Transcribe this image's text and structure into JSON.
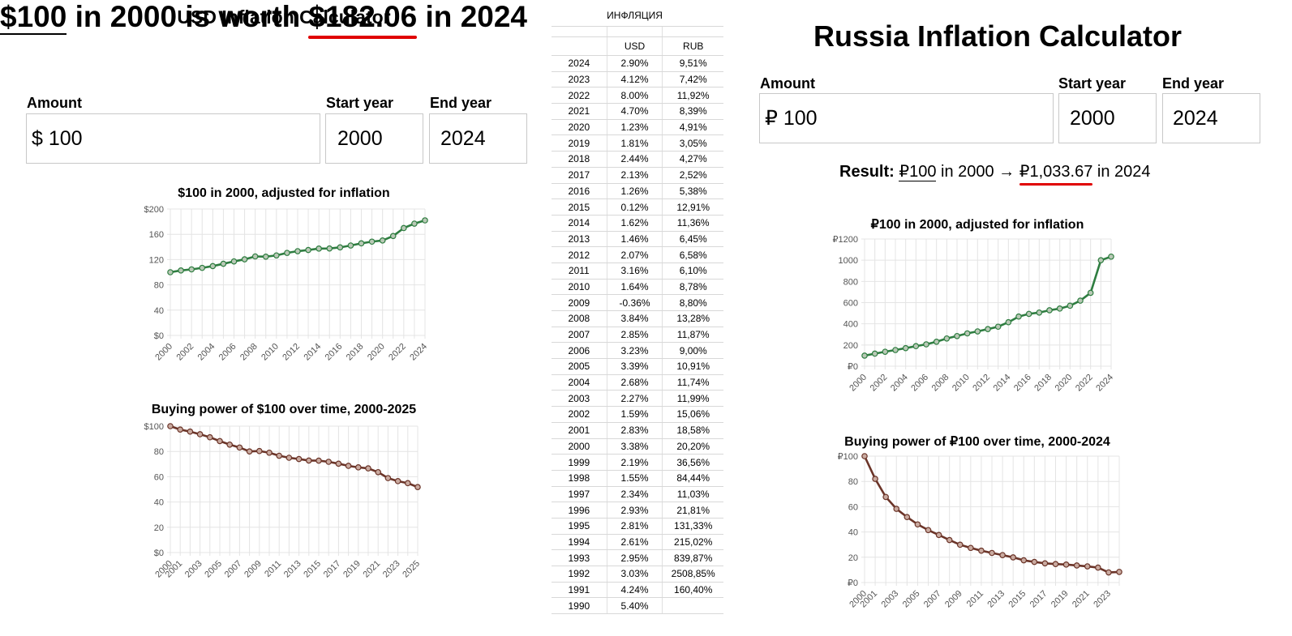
{
  "usd": {
    "title": "USD Inflation Calculator",
    "headline": {
      "amount": "$100",
      "mid1": " in ",
      "start_year": "2000",
      "mid2": " is worth ",
      "result": "$182.06",
      "mid3": " in ",
      "end_year": "2024"
    },
    "amount_label": "Amount",
    "start_label": "Start year",
    "end_label": "End year",
    "amount_value": "$ 100",
    "start_value": "2000",
    "end_value": "2024",
    "chart1_title": "$100 in 2000, adjusted for inflation",
    "chart2_title": "Buying power of $100 over time, 2000-2025"
  },
  "table": {
    "title": "ИНФЛЯЦИЯ",
    "head": [
      "",
      "USD",
      "RUB"
    ],
    "rows": [
      [
        "2024",
        "2.90%",
        "9,51%"
      ],
      [
        "2023",
        "4.12%",
        "7,42%"
      ],
      [
        "2022",
        "8.00%",
        "11,92%"
      ],
      [
        "2021",
        "4.70%",
        "8,39%"
      ],
      [
        "2020",
        "1.23%",
        "4,91%"
      ],
      [
        "2019",
        "1.81%",
        "3,05%"
      ],
      [
        "2018",
        "2.44%",
        "4,27%"
      ],
      [
        "2017",
        "2.13%",
        "2,52%"
      ],
      [
        "2016",
        "1.26%",
        "5,38%"
      ],
      [
        "2015",
        "0.12%",
        "12,91%"
      ],
      [
        "2014",
        "1.62%",
        "11,36%"
      ],
      [
        "2013",
        "1.46%",
        "6,45%"
      ],
      [
        "2012",
        "2.07%",
        "6,58%"
      ],
      [
        "2011",
        "3.16%",
        "6,10%"
      ],
      [
        "2010",
        "1.64%",
        "8,78%"
      ],
      [
        "2009",
        "-0.36%",
        "8,80%"
      ],
      [
        "2008",
        "3.84%",
        "13,28%"
      ],
      [
        "2007",
        "2.85%",
        "11,87%"
      ],
      [
        "2006",
        "3.23%",
        "9,00%"
      ],
      [
        "2005",
        "3.39%",
        "10,91%"
      ],
      [
        "2004",
        "2.68%",
        "11,74%"
      ],
      [
        "2003",
        "2.27%",
        "11,99%"
      ],
      [
        "2002",
        "1.59%",
        "15,06%"
      ],
      [
        "2001",
        "2.83%",
        "18,58%"
      ],
      [
        "2000",
        "3.38%",
        "20,20%"
      ],
      [
        "1999",
        "2.19%",
        "36,56%"
      ],
      [
        "1998",
        "1.55%",
        "84,44%"
      ],
      [
        "1997",
        "2.34%",
        "11,03%"
      ],
      [
        "1996",
        "2.93%",
        "21,81%"
      ],
      [
        "1995",
        "2.81%",
        "131,33%"
      ],
      [
        "1994",
        "2.61%",
        "215,02%"
      ],
      [
        "1993",
        "2.95%",
        "839,87%"
      ],
      [
        "1992",
        "3.03%",
        "2508,85%"
      ],
      [
        "1991",
        "4.24%",
        "160,40%"
      ],
      [
        "1990",
        "5.40%",
        ""
      ]
    ]
  },
  "rub": {
    "title": "Russia Inflation Calculator",
    "amount_label": "Amount",
    "start_label": "Start year",
    "end_label": "End year",
    "amount_value": "₽ 100",
    "start_value": "2000",
    "end_value": "2024",
    "result": {
      "label": "Result:",
      "amount": "₽100",
      "mid1": " in 2000 → ",
      "value": "₽1,033.67",
      "mid2": " in 2024"
    },
    "chart1_title": "₽100 in 2000, adjusted for inflation",
    "chart2_title": "Buying power of ₽100 over time, 2000-2024"
  },
  "colors": {
    "green": "#2e7d40",
    "brown": "#6b3428",
    "underline_red": "#e00000"
  },
  "chart_data": [
    {
      "id": "usd-adjusted",
      "type": "line",
      "title": "$100 in 2000, adjusted for inflation",
      "x": [
        2000,
        2001,
        2002,
        2003,
        2004,
        2005,
        2006,
        2007,
        2008,
        2009,
        2010,
        2011,
        2012,
        2013,
        2014,
        2015,
        2016,
        2017,
        2018,
        2019,
        2020,
        2021,
        2022,
        2023,
        2024
      ],
      "x_tick_labels": [
        "2000",
        "2002",
        "2004",
        "2006",
        "2008",
        "2010",
        "2012",
        "2014",
        "2016",
        "2018",
        "2020",
        "2022",
        "2024"
      ],
      "values": [
        100,
        102.8,
        104.5,
        106.9,
        109.7,
        113.4,
        117.1,
        120.4,
        125.0,
        124.6,
        126.6,
        130.6,
        133.3,
        135.2,
        137.4,
        137.6,
        139.3,
        142.3,
        145.7,
        148.4,
        150.2,
        157.3,
        169.9,
        176.9,
        182.06
      ],
      "ylim": [
        0,
        200
      ],
      "y_ticks": [
        0,
        40,
        80,
        120,
        160,
        200
      ],
      "y_tick_labels": [
        "$0",
        "40",
        "80",
        "120",
        "160",
        "$200"
      ],
      "color": "#2e7d40",
      "grid": true
    },
    {
      "id": "usd-buying-power",
      "type": "line",
      "title": "Buying power of $100 over time, 2000-2025",
      "x": [
        2000,
        2001,
        2002,
        2003,
        2004,
        2005,
        2006,
        2007,
        2008,
        2009,
        2010,
        2011,
        2012,
        2013,
        2014,
        2015,
        2016,
        2017,
        2018,
        2019,
        2020,
        2021,
        2022,
        2023,
        2024,
        2025
      ],
      "x_tick_labels": [
        "2000",
        "2001",
        "2003",
        "2005",
        "2007",
        "2009",
        "2011",
        "2013",
        "2015",
        "2017",
        "2019",
        "2021",
        "2023",
        "2025"
      ],
      "values": [
        100,
        97.3,
        95.7,
        93.6,
        91.2,
        88.2,
        85.4,
        83.1,
        80.0,
        80.3,
        79.0,
        76.6,
        75.0,
        74.0,
        72.8,
        72.7,
        71.8,
        70.3,
        68.6,
        67.4,
        66.6,
        63.6,
        58.9,
        56.5,
        54.9,
        51.8
      ],
      "ylim": [
        0,
        100
      ],
      "y_ticks": [
        0,
        20,
        40,
        60,
        80,
        100
      ],
      "y_tick_labels": [
        "$0",
        "20",
        "40",
        "60",
        "80",
        "$100"
      ],
      "color": "#6b3428",
      "grid": true
    },
    {
      "id": "rub-adjusted",
      "type": "line",
      "title": "₽100 in 2000, adjusted for inflation",
      "x": [
        2000,
        2001,
        2002,
        2003,
        2004,
        2005,
        2006,
        2007,
        2008,
        2009,
        2010,
        2011,
        2012,
        2013,
        2014,
        2015,
        2016,
        2017,
        2018,
        2019,
        2020,
        2021,
        2022,
        2023,
        2024
      ],
      "x_tick_labels": [
        "2000",
        "2002",
        "2004",
        "2006",
        "2008",
        "2010",
        "2012",
        "2014",
        "2016",
        "2018",
        "2020",
        "2022",
        "2024"
      ],
      "values": [
        100,
        118.6,
        136.5,
        152.8,
        170.7,
        189.3,
        206.4,
        230.9,
        261.6,
        284.6,
        309.6,
        328.5,
        350.1,
        372.7,
        414.9,
        468.5,
        493.7,
        506.1,
        527.7,
        543.8,
        570.5,
        618.4,
        692.1,
        1000,
        1033.67
      ],
      "ylim": [
        0,
        1200
      ],
      "y_ticks": [
        0,
        200,
        400,
        600,
        800,
        1000,
        1200
      ],
      "y_tick_labels": [
        "₽0",
        "200",
        "400",
        "600",
        "800",
        "1000",
        "₽1200"
      ],
      "color": "#2e7d40",
      "grid": true
    },
    {
      "id": "rub-buying-power",
      "type": "line",
      "title": "Buying power of ₽100 over time, 2000-2024",
      "x": [
        2000,
        2001,
        2002,
        2003,
        2004,
        2005,
        2006,
        2007,
        2008,
        2009,
        2010,
        2011,
        2012,
        2013,
        2014,
        2015,
        2016,
        2017,
        2018,
        2019,
        2020,
        2021,
        2022,
        2023,
        2024
      ],
      "x_tick_labels": [
        "2000",
        "2001",
        "2003",
        "2005",
        "2007",
        "2009",
        "2011",
        "2013",
        "2015",
        "2017",
        "2019",
        "2021",
        "2023"
      ],
      "values": [
        100,
        82.0,
        67.7,
        58.3,
        51.8,
        46.0,
        41.5,
        37.6,
        33.6,
        29.9,
        27.4,
        25.2,
        23.4,
        21.7,
        19.9,
        17.6,
        16.3,
        15.2,
        14.6,
        14.2,
        13.5,
        12.8,
        11.8,
        8.0,
        8.4
      ],
      "ylim": [
        0,
        100
      ],
      "y_ticks": [
        0,
        20,
        40,
        60,
        80,
        100
      ],
      "y_tick_labels": [
        "₽0",
        "20",
        "40",
        "60",
        "80",
        "₽100"
      ],
      "color": "#6b3428",
      "grid": true
    }
  ]
}
